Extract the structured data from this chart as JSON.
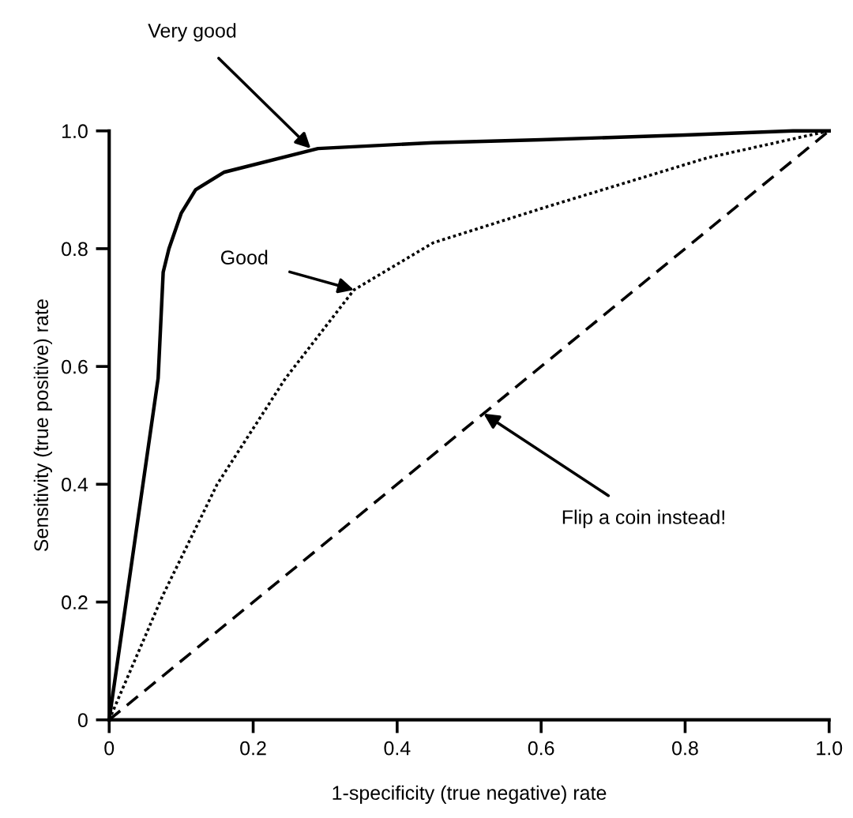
{
  "chart_data": {
    "type": "line",
    "xlabel": "1-specificity (true negative) rate",
    "ylabel": "Sensitivity (true positive) rate",
    "xlim": [
      0,
      1.0
    ],
    "ylim": [
      0,
      1.0
    ],
    "xticks": [
      0,
      0.2,
      0.4,
      0.6,
      0.8,
      {
        "value": 1,
        "label": "1.0"
      }
    ],
    "yticks": [
      0,
      0.2,
      0.4,
      0.6,
      0.8,
      {
        "value": 1,
        "label": "1.0"
      }
    ],
    "grid": false,
    "marker": "none",
    "series": [
      {
        "color": "#000000",
        "line_style": "solid",
        "x": [
          0,
          0.068,
          0.075,
          0.083,
          0.1,
          0.12,
          0.16,
          0.29,
          0.45,
          0.6,
          0.8,
          0.95,
          1.0
        ],
        "values": [
          0,
          0.58,
          0.76,
          0.8,
          0.86,
          0.9,
          0.93,
          0.97,
          0.98,
          0.985,
          0.993,
          1.0,
          1.0
        ]
      },
      {
        "color": "#000000",
        "line_style": "dotted",
        "x": [
          0,
          0.074,
          0.15,
          0.245,
          0.34,
          0.45,
          0.605,
          0.83,
          1.0
        ],
        "values": [
          0,
          0.21,
          0.4,
          0.58,
          0.73,
          0.81,
          0.87,
          0.954,
          1.0
        ]
      },
      {
        "color": "#000000",
        "line_style": "dashed",
        "x": [
          0,
          1.0
        ],
        "values": [
          0,
          1.0
        ]
      }
    ],
    "annotations": [
      {
        "text": "Very good",
        "x": 0.28,
        "y": 0.97
      },
      {
        "text": "Good",
        "x": 0.34,
        "y": 0.73
      },
      {
        "text": "Flip a coin instead!",
        "x": 0.52,
        "y": 0.52
      }
    ]
  }
}
